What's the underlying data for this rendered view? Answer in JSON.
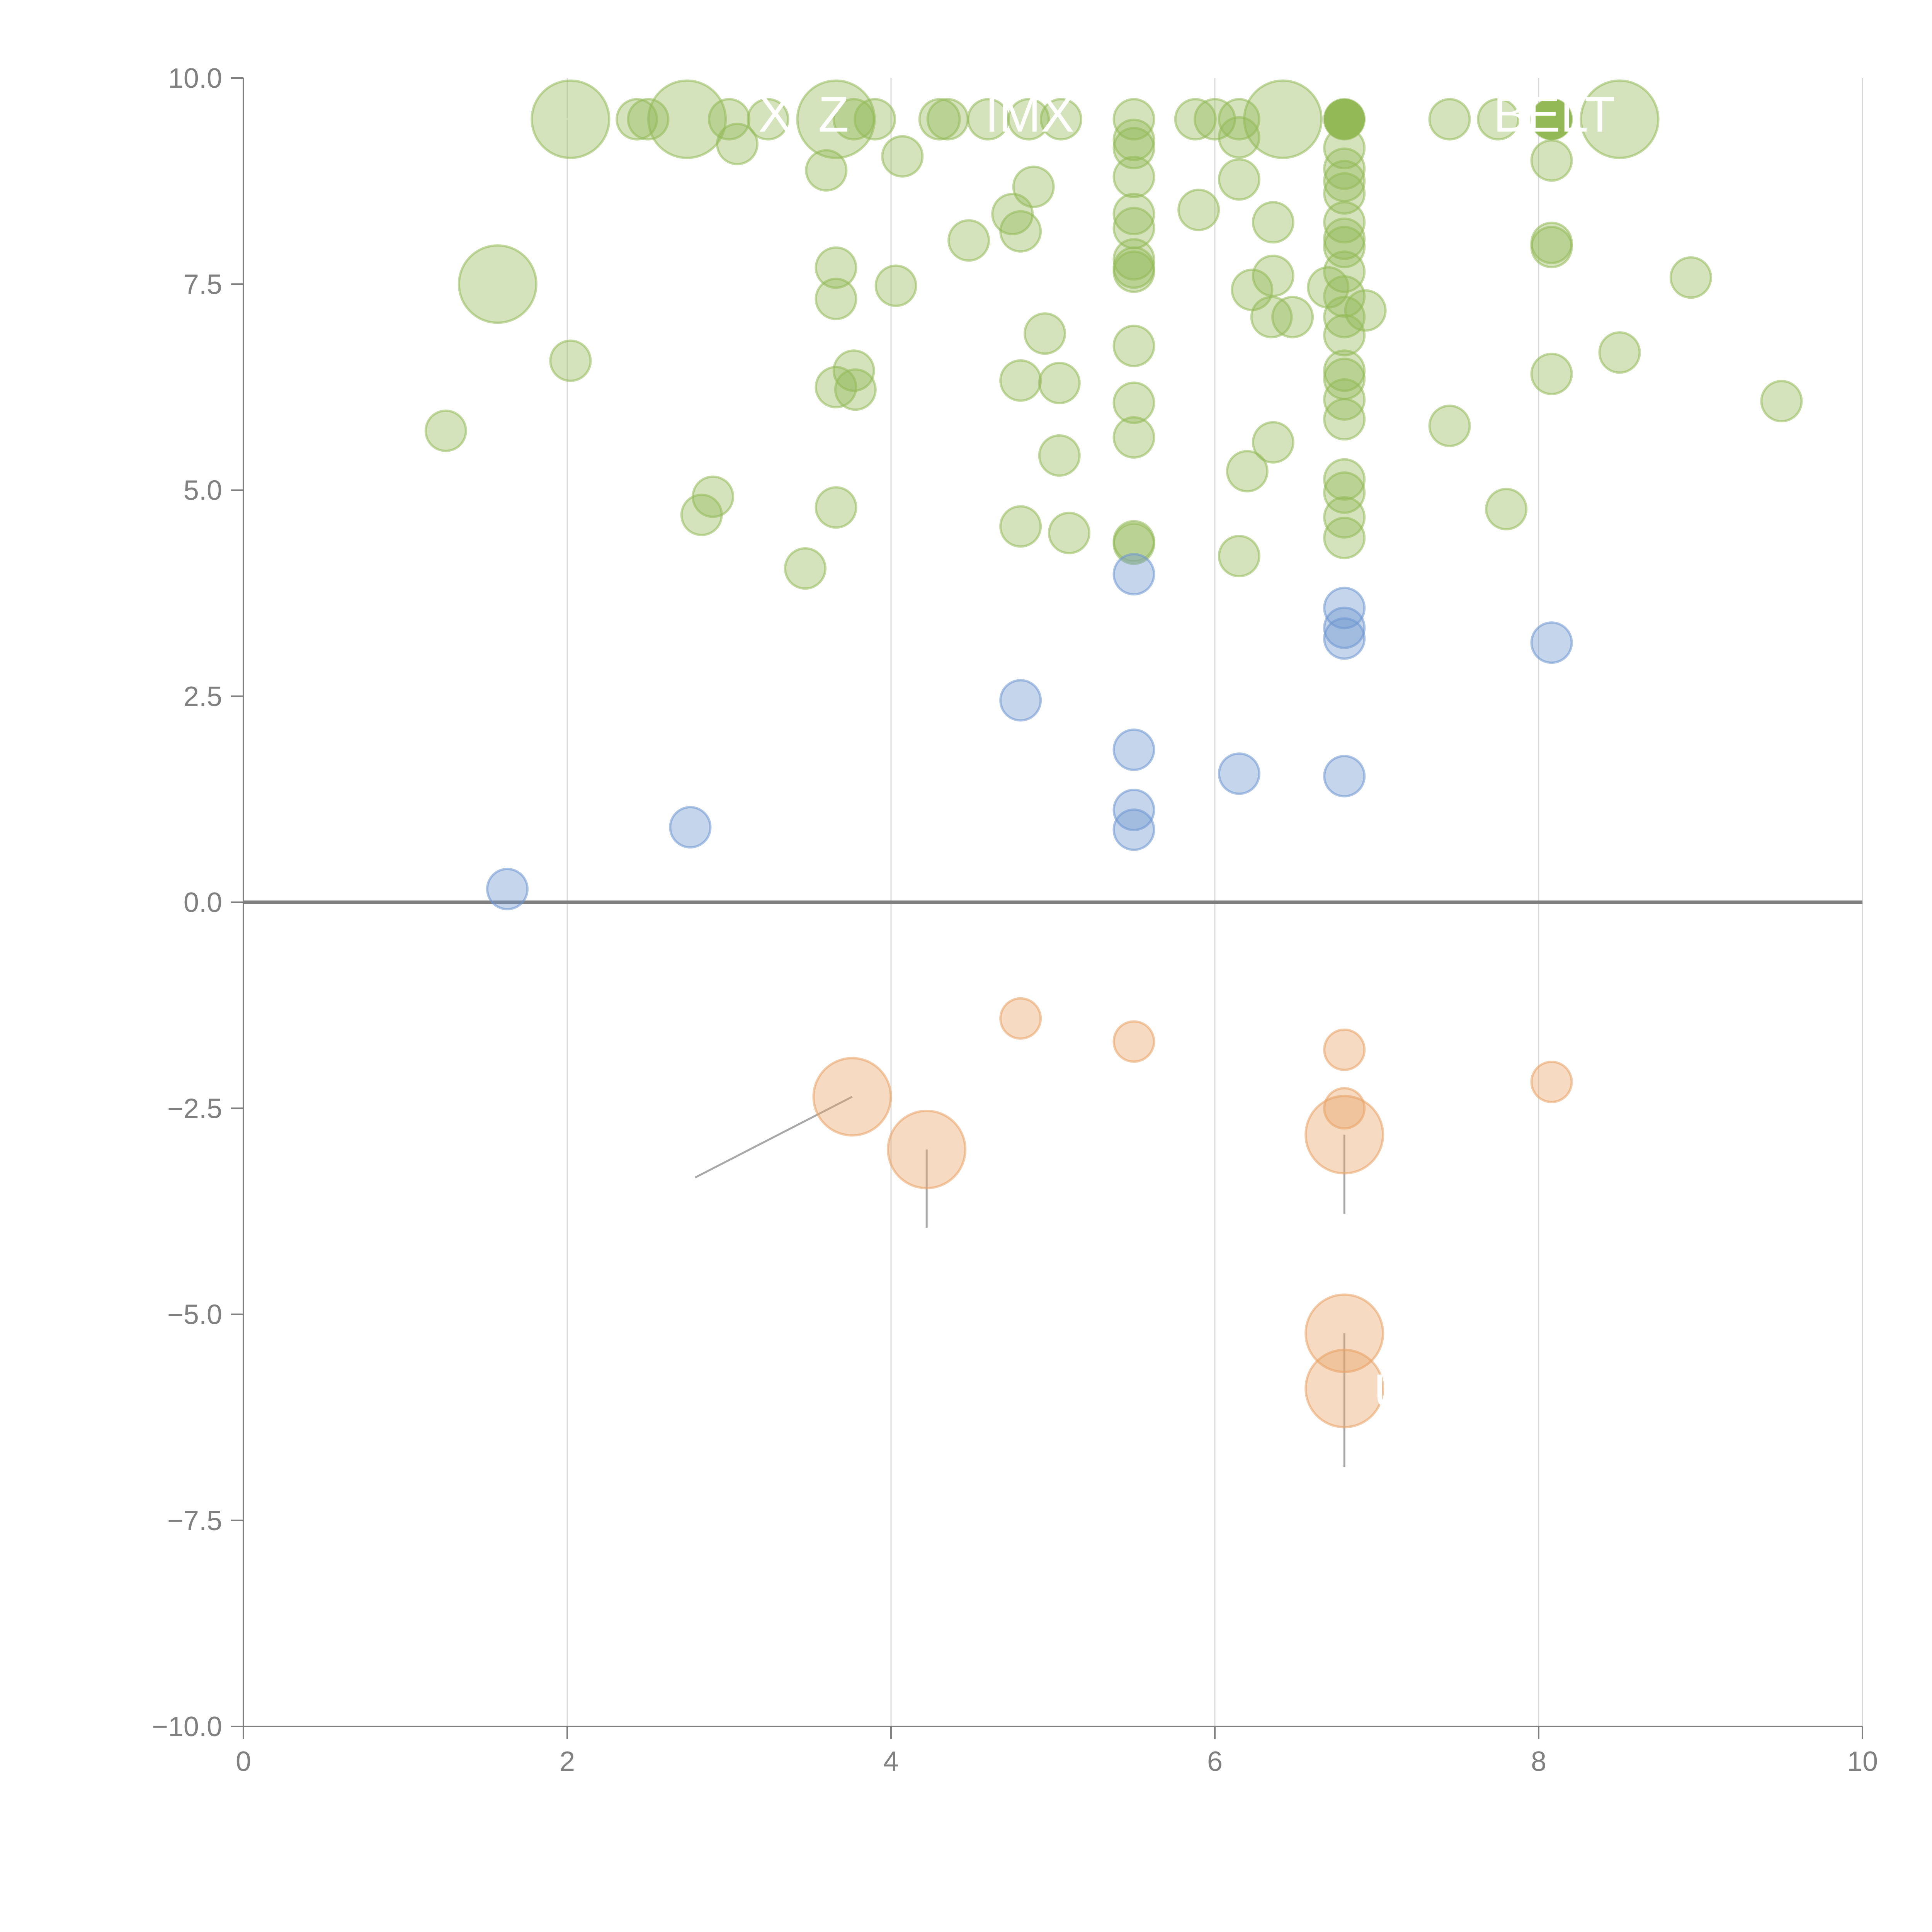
{
  "chart_data": {
    "type": "scatter",
    "title": "",
    "xlabel": "",
    "ylabel": "",
    "xlim": [
      0,
      10
    ],
    "ylim": [
      -10,
      10
    ],
    "x_ticks": [
      "0",
      "2",
      "4",
      "6",
      "8",
      "10"
    ],
    "y_ticks": [
      "10.0",
      "7.5",
      "5.0",
      "2.5",
      "0.0",
      "−2.5",
      "−5.0",
      "−7.5",
      "−10.0"
    ],
    "grid": "vertical",
    "zero_line": true,
    "legend": "none",
    "colors": {
      "green": "#93b957",
      "blue": "#6d96cf",
      "orange": "#e8a266",
      "axis": "#808080",
      "grid": "#d9d9d9"
    },
    "series": [
      {
        "name": "green",
        "color": "#93b957",
        "points": [
          {
            "x": 2.02,
            "y": 9.5,
            "size": "large"
          },
          {
            "x": 2.74,
            "y": 9.5,
            "size": "large"
          },
          {
            "x": 3.66,
            "y": 9.5,
            "size": "large"
          },
          {
            "x": 6.42,
            "y": 9.5,
            "size": "large"
          },
          {
            "x": 8.5,
            "y": 9.5,
            "size": "large"
          },
          {
            "x": 1.57,
            "y": 7.5,
            "size": "large"
          },
          {
            "x": 2.43,
            "y": 9.5
          },
          {
            "x": 2.5,
            "y": 9.5
          },
          {
            "x": 3.0,
            "y": 9.5
          },
          {
            "x": 3.24,
            "y": 9.5
          },
          {
            "x": 3.05,
            "y": 9.2
          },
          {
            "x": 3.77,
            "y": 9.5
          },
          {
            "x": 3.9,
            "y": 9.5
          },
          {
            "x": 4.3,
            "y": 9.5
          },
          {
            "x": 4.35,
            "y": 9.5
          },
          {
            "x": 4.6,
            "y": 9.5
          },
          {
            "x": 4.85,
            "y": 9.5
          },
          {
            "x": 5.05,
            "y": 9.5
          },
          {
            "x": 5.5,
            "y": 9.5
          },
          {
            "x": 5.88,
            "y": 9.5
          },
          {
            "x": 6.0,
            "y": 9.5
          },
          {
            "x": 6.15,
            "y": 9.5
          },
          {
            "x": 6.8,
            "y": 9.5
          },
          {
            "x": 7.45,
            "y": 9.5
          },
          {
            "x": 7.75,
            "y": 9.5
          },
          {
            "x": 8.08,
            "y": 9.5
          },
          {
            "x": 3.6,
            "y": 8.88
          },
          {
            "x": 4.07,
            "y": 9.05
          },
          {
            "x": 5.5,
            "y": 9.15
          },
          {
            "x": 5.5,
            "y": 9.25
          },
          {
            "x": 6.15,
            "y": 9.28
          },
          {
            "x": 6.8,
            "y": 9.15
          },
          {
            "x": 8.08,
            "y": 9.0
          },
          {
            "x": 5.5,
            "y": 8.8
          },
          {
            "x": 6.15,
            "y": 8.77
          },
          {
            "x": 6.8,
            "y": 8.9
          },
          {
            "x": 6.8,
            "y": 8.75
          },
          {
            "x": 6.8,
            "y": 8.6
          },
          {
            "x": 4.88,
            "y": 8.68
          },
          {
            "x": 4.75,
            "y": 8.35
          },
          {
            "x": 4.8,
            "y": 8.14
          },
          {
            "x": 4.48,
            "y": 8.03
          },
          {
            "x": 5.5,
            "y": 8.35
          },
          {
            "x": 5.5,
            "y": 8.18
          },
          {
            "x": 5.9,
            "y": 8.4
          },
          {
            "x": 6.36,
            "y": 8.25
          },
          {
            "x": 6.8,
            "y": 8.25
          },
          {
            "x": 6.8,
            "y": 8.05
          },
          {
            "x": 6.8,
            "y": 7.95
          },
          {
            "x": 8.08,
            "y": 8.0
          },
          {
            "x": 8.08,
            "y": 7.95
          },
          {
            "x": 3.66,
            "y": 7.7
          },
          {
            "x": 5.5,
            "y": 7.8
          },
          {
            "x": 5.5,
            "y": 7.7
          },
          {
            "x": 5.5,
            "y": 7.65
          },
          {
            "x": 6.8,
            "y": 7.65
          },
          {
            "x": 6.36,
            "y": 7.6
          },
          {
            "x": 8.94,
            "y": 7.58
          },
          {
            "x": 4.03,
            "y": 7.48
          },
          {
            "x": 6.23,
            "y": 7.43
          },
          {
            "x": 6.7,
            "y": 7.46
          },
          {
            "x": 6.8,
            "y": 7.35
          },
          {
            "x": 3.66,
            "y": 7.32
          },
          {
            "x": 6.93,
            "y": 7.18
          },
          {
            "x": 6.8,
            "y": 7.1
          },
          {
            "x": 6.35,
            "y": 7.1
          },
          {
            "x": 6.48,
            "y": 7.1
          },
          {
            "x": 4.95,
            "y": 6.9
          },
          {
            "x": 6.8,
            "y": 6.88
          },
          {
            "x": 5.5,
            "y": 6.75
          },
          {
            "x": 8.5,
            "y": 6.67
          },
          {
            "x": 2.02,
            "y": 6.57
          },
          {
            "x": 3.77,
            "y": 6.45
          },
          {
            "x": 6.8,
            "y": 6.45
          },
          {
            "x": 8.08,
            "y": 6.41
          },
          {
            "x": 6.8,
            "y": 6.35
          },
          {
            "x": 4.8,
            "y": 6.33
          },
          {
            "x": 5.04,
            "y": 6.3
          },
          {
            "x": 3.66,
            "y": 6.25
          },
          {
            "x": 3.78,
            "y": 6.22
          },
          {
            "x": 6.8,
            "y": 6.1
          },
          {
            "x": 9.5,
            "y": 6.08
          },
          {
            "x": 5.5,
            "y": 6.06
          },
          {
            "x": 6.8,
            "y": 5.86
          },
          {
            "x": 7.45,
            "y": 5.78
          },
          {
            "x": 1.25,
            "y": 5.72
          },
          {
            "x": 5.5,
            "y": 5.64
          },
          {
            "x": 6.36,
            "y": 5.58
          },
          {
            "x": 5.04,
            "y": 5.42
          },
          {
            "x": 6.2,
            "y": 5.23
          },
          {
            "x": 6.8,
            "y": 5.13
          },
          {
            "x": 6.8,
            "y": 4.97
          },
          {
            "x": 2.9,
            "y": 4.92
          },
          {
            "x": 3.66,
            "y": 4.79
          },
          {
            "x": 7.8,
            "y": 4.77
          },
          {
            "x": 2.83,
            "y": 4.7
          },
          {
            "x": 6.8,
            "y": 4.67
          },
          {
            "x": 4.8,
            "y": 4.56
          },
          {
            "x": 5.1,
            "y": 4.48
          },
          {
            "x": 6.8,
            "y": 4.42
          },
          {
            "x": 5.5,
            "y": 4.38
          },
          {
            "x": 5.5,
            "y": 4.35
          },
          {
            "x": 6.15,
            "y": 4.2
          },
          {
            "x": 3.47,
            "y": 4.05
          }
        ]
      },
      {
        "name": "blue",
        "color": "#6d96cf",
        "points": [
          {
            "x": 5.5,
            "y": 3.98
          },
          {
            "x": 6.8,
            "y": 3.57
          },
          {
            "x": 6.8,
            "y": 3.33
          },
          {
            "x": 6.8,
            "y": 3.2
          },
          {
            "x": 8.08,
            "y": 3.15
          },
          {
            "x": 4.8,
            "y": 2.45
          },
          {
            "x": 5.5,
            "y": 1.85
          },
          {
            "x": 6.15,
            "y": 1.56
          },
          {
            "x": 6.8,
            "y": 1.53
          },
          {
            "x": 5.5,
            "y": 1.12
          },
          {
            "x": 2.76,
            "y": 0.91
          },
          {
            "x": 5.5,
            "y": 0.88
          },
          {
            "x": 1.63,
            "y": 0.16
          }
        ]
      },
      {
        "name": "orange",
        "color": "#e8a266",
        "points": [
          {
            "x": 4.8,
            "y": -1.41
          },
          {
            "x": 5.5,
            "y": -1.69
          },
          {
            "x": 6.8,
            "y": -1.79
          },
          {
            "x": 8.08,
            "y": -2.18
          },
          {
            "x": 6.8,
            "y": -2.5
          },
          {
            "x": 3.76,
            "y": -2.36,
            "size": "large"
          },
          {
            "x": 4.22,
            "y": -3.0,
            "size": "large"
          },
          {
            "x": 6.8,
            "y": -2.82,
            "size": "large"
          },
          {
            "x": 6.8,
            "y": -5.23,
            "size": "large"
          },
          {
            "x": 6.8,
            "y": -5.9,
            "size": "large"
          }
        ]
      }
    ],
    "highlighted": [
      {
        "x": 6.8,
        "y": 9.5,
        "series": "green"
      },
      {
        "x": 8.08,
        "y": 9.5,
        "series": "green"
      }
    ],
    "leader_lines": [
      {
        "from": [
          2.02,
          9.5
        ],
        "to": [
          1.82,
          9.53
        ],
        "color": "light"
      },
      {
        "from": [
          2.74,
          9.5
        ],
        "to": [
          2.95,
          9.53
        ],
        "color": "light"
      },
      {
        "from": [
          3.66,
          9.5
        ],
        "to": [
          3.98,
          9.54
        ],
        "color": "light"
      },
      {
        "from": [
          6.42,
          9.5
        ],
        "to": [
          6.12,
          9.53
        ],
        "color": "light"
      },
      {
        "from": [
          8.5,
          9.5
        ],
        "to": [
          8.72,
          9.54
        ],
        "color": "light"
      },
      {
        "from": [
          1.57,
          7.5
        ],
        "to": [
          1.78,
          7.5
        ],
        "color": "light"
      },
      {
        "from": [
          3.76,
          -2.36
        ],
        "to": [
          2.79,
          -3.34
        ],
        "color": "dark"
      },
      {
        "from": [
          4.22,
          -3.0
        ],
        "to": [
          4.22,
          -3.95
        ],
        "color": "dark"
      },
      {
        "from": [
          6.8,
          -2.82
        ],
        "to": [
          6.8,
          -3.78
        ],
        "color": "dark"
      },
      {
        "from": [
          6.8,
          -5.23
        ],
        "to": [
          6.8,
          -6.85
        ],
        "color": "dark"
      }
    ],
    "annotations": [
      {
        "text": "X",
        "x": 3.18,
        "y": 9.35
      },
      {
        "text": "Z",
        "x": 3.55,
        "y": 9.35
      },
      {
        "text": "IMX",
        "x": 4.58,
        "y": 9.35
      },
      {
        "text": "BELT",
        "x": 7.72,
        "y": 9.35
      },
      {
        "text": "U",
        "x": 6.98,
        "y": -6.15
      }
    ]
  }
}
